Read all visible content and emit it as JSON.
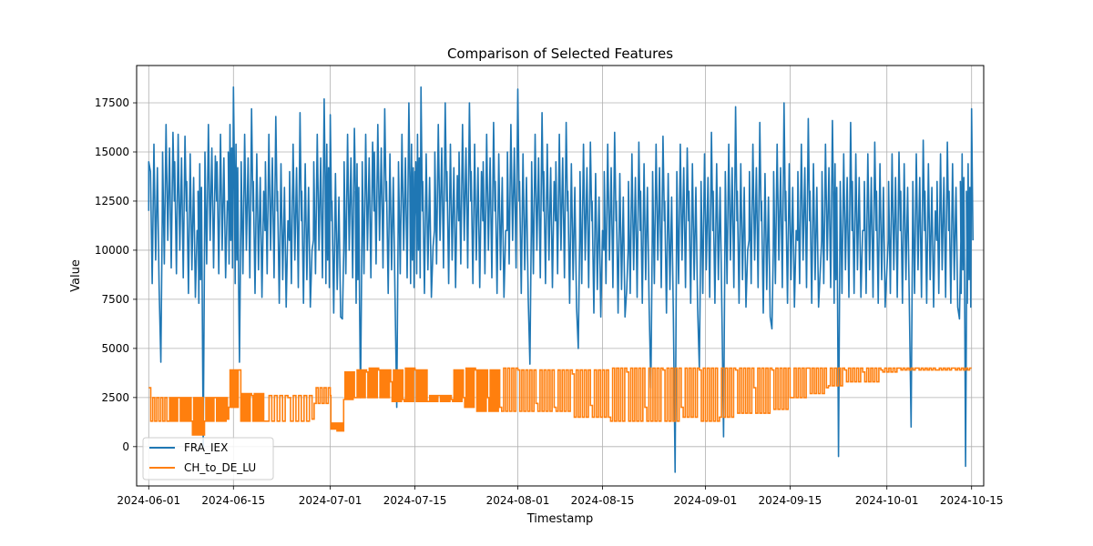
{
  "chart_data": {
    "type": "line",
    "title": "Comparison of Selected Features",
    "xlabel": "Timestamp",
    "ylabel": "Value",
    "x_range": [
      "2024-05-30",
      "2024-10-17"
    ],
    "ylim": [
      -2000,
      19400
    ],
    "x_ticks": [
      "2024-06-01",
      "2024-06-15",
      "2024-07-01",
      "2024-07-15",
      "2024-08-01",
      "2024-08-15",
      "2024-09-01",
      "2024-09-15",
      "2024-10-01",
      "2024-10-15"
    ],
    "y_ticks": [
      0,
      2500,
      5000,
      7500,
      10000,
      12500,
      15000,
      17500
    ],
    "y_tick_labels": [
      "0",
      "2500",
      "5000",
      "7500",
      "10000",
      "12500",
      "15000",
      "17500"
    ],
    "grid": true,
    "legend_position": "lower-left",
    "series": [
      {
        "name": "FRA_IEX",
        "color": "#1f77b4",
        "x": [
          "2024-06-01",
          "2024-06-03",
          "2024-06-05",
          "2024-06-07",
          "2024-06-09",
          "2024-06-10",
          "2024-06-12",
          "2024-06-14",
          "2024-06-15",
          "2024-06-16",
          "2024-06-18",
          "2024-06-20",
          "2024-06-22",
          "2024-06-24",
          "2024-06-26",
          "2024-06-28",
          "2024-06-30",
          "2024-07-01",
          "2024-07-03",
          "2024-07-05",
          "2024-07-06",
          "2024-07-08",
          "2024-07-10",
          "2024-07-12",
          "2024-07-14",
          "2024-07-15",
          "2024-07-16",
          "2024-07-18",
          "2024-07-20",
          "2024-07-22",
          "2024-07-24",
          "2024-07-26",
          "2024-07-28",
          "2024-07-30",
          "2024-08-01",
          "2024-08-03",
          "2024-08-05",
          "2024-08-07",
          "2024-08-09",
          "2024-08-11",
          "2024-08-13",
          "2024-08-15",
          "2024-08-17",
          "2024-08-19",
          "2024-08-21",
          "2024-08-23",
          "2024-08-25",
          "2024-08-27",
          "2024-08-29",
          "2024-08-31",
          "2024-09-02",
          "2024-09-04",
          "2024-09-06",
          "2024-09-08",
          "2024-09-10",
          "2024-09-12",
          "2024-09-14",
          "2024-09-16",
          "2024-09-18",
          "2024-09-20",
          "2024-09-22",
          "2024-09-23",
          "2024-09-25",
          "2024-09-27",
          "2024-09-29",
          "2024-10-01",
          "2024-10-03",
          "2024-10-05",
          "2024-10-07",
          "2024-10-09",
          "2024-10-11",
          "2024-10-13",
          "2024-10-14",
          "2024-10-15"
        ],
        "values": [
          14500,
          4300,
          16000,
          15800,
          11000,
          0,
          14800,
          12500,
          18300,
          4300,
          17200,
          13000,
          16800,
          11500,
          17000,
          10000,
          17700,
          16900,
          6500,
          16200,
          2500,
          15500,
          17200,
          2000,
          17500,
          14000,
          18300,
          10200,
          17500,
          13800,
          17500,
          14000,
          16500,
          11000,
          18200,
          4200,
          17000,
          13500,
          16500,
          5000,
          15500,
          11000,
          16000,
          8000,
          15500,
          3000,
          15800,
          -1300,
          15200,
          4000,
          16000,
          500,
          17300,
          10000,
          16500,
          6000,
          17500,
          11000,
          16700,
          9000,
          16600,
          -500,
          16500,
          11000,
          15500,
          9000,
          15000,
          1000,
          15600,
          12000,
          15500,
          6500,
          -1000,
          17200
        ],
        "baseline": [
          12000,
          11500,
          12500,
          12000,
          11000,
          10500,
          12500,
          12000,
          12500,
          11500,
          12000,
          11000,
          12000,
          10500,
          11500,
          10500,
          12000,
          11500,
          10000,
          12000,
          10500,
          12000,
          12500,
          11000,
          12000,
          11500,
          12000,
          11000,
          12500,
          11500,
          12500,
          11500,
          12000,
          11000,
          12500,
          11000,
          12000,
          11500,
          12000,
          10500,
          11500,
          10000,
          11500,
          10000,
          11000,
          10500,
          11500,
          10000,
          11500,
          10500,
          11000,
          10500,
          11500,
          10500,
          11500,
          10000,
          11500,
          10500,
          11500,
          10500,
          11500,
          10500,
          11000,
          11000,
          11000,
          10500,
          11000,
          10500,
          11000,
          10500,
          11000,
          10500,
          11000,
          10500
        ]
      },
      {
        "name": "CH_to_DE_LU",
        "color": "#ff7f0e",
        "x": [
          "2024-06-01",
          "2024-06-04",
          "2024-06-06",
          "2024-06-08",
          "2024-06-10",
          "2024-06-12",
          "2024-06-14",
          "2024-06-16",
          "2024-06-18",
          "2024-06-20",
          "2024-06-24",
          "2024-06-28",
          "2024-07-01",
          "2024-07-02",
          "2024-07-03",
          "2024-07-05",
          "2024-07-07",
          "2024-07-09",
          "2024-07-11",
          "2024-07-13",
          "2024-07-15",
          "2024-07-17",
          "2024-07-19",
          "2024-07-21",
          "2024-07-23",
          "2024-07-25",
          "2024-07-27",
          "2024-07-29",
          "2024-08-01",
          "2024-08-04",
          "2024-08-07",
          "2024-08-10",
          "2024-08-13",
          "2024-08-16",
          "2024-08-19",
          "2024-08-22",
          "2024-08-25",
          "2024-08-28",
          "2024-08-31",
          "2024-09-03",
          "2024-09-06",
          "2024-09-09",
          "2024-09-12",
          "2024-09-15",
          "2024-09-18",
          "2024-09-21",
          "2024-09-24",
          "2024-09-27",
          "2024-09-30",
          "2024-10-03",
          "2024-10-06",
          "2024-10-09",
          "2024-10-12",
          "2024-10-15"
        ],
        "values": [
          3000,
          1300,
          2500,
          1300,
          600,
          2500,
          1400,
          3900,
          2600,
          1300,
          2500,
          1400,
          2600,
          1200,
          800,
          2500,
          3800,
          3900,
          3300,
          2400,
          3900,
          2300,
          2600,
          2400,
          2500,
          3900,
          2500,
          2000,
          3900,
          2200,
          2000,
          3700,
          2100,
          1500,
          3800,
          2000,
          3900,
          2000,
          3900,
          1300,
          3900,
          3000,
          3900,
          2500,
          4000,
          3000,
          3900,
          3800,
          3900,
          4000,
          4000,
          3900,
          4000,
          4000
        ],
        "band_low": [
          1300,
          1300,
          1300,
          1300,
          600,
          1300,
          1300,
          2000,
          1300,
          1300,
          1300,
          1300,
          2200,
          900,
          800,
          2400,
          2500,
          2500,
          2500,
          2300,
          2300,
          2300,
          2300,
          2300,
          2300,
          2000,
          1800,
          1800,
          1800,
          1800,
          1800,
          1800,
          1500,
          1500,
          1300,
          1300,
          1300,
          1300,
          1500,
          1300,
          1500,
          1700,
          1700,
          1900,
          2500,
          2700,
          3100,
          3300,
          3300,
          3800,
          3900,
          3900,
          3900,
          3900
        ],
        "band_high": [
          3000,
          2500,
          2500,
          2500,
          2500,
          2500,
          2500,
          3900,
          2700,
          2700,
          2600,
          2600,
          3000,
          1200,
          1200,
          3800,
          3900,
          4000,
          3900,
          3900,
          4000,
          3900,
          2600,
          2600,
          3900,
          4000,
          3900,
          3900,
          4000,
          3900,
          3900,
          3900,
          3900,
          3900,
          4000,
          4000,
          4000,
          4000,
          4000,
          4000,
          4000,
          4000,
          4000,
          4000,
          4000,
          4000,
          4000,
          4000,
          4000,
          4000,
          4000,
          4000,
          4000,
          4000
        ]
      }
    ]
  }
}
